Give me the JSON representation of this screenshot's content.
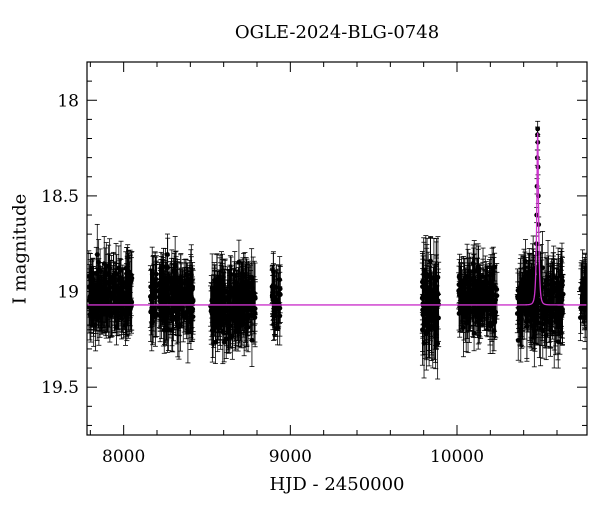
{
  "chart_data": {
    "type": "scatter",
    "title": "OGLE-2024-BLG-0748",
    "xlabel": "HJD - 2450000",
    "ylabel": "I magnitude",
    "xlim": [
      7780,
      10780
    ],
    "ylim": [
      19.75,
      17.8
    ],
    "y_inverted": true,
    "x_ticks": [
      8000,
      9000,
      10000
    ],
    "y_ticks": [
      18,
      18.5,
      19,
      19.5
    ],
    "grid": false,
    "legend": "none",
    "colors": {
      "points": "#000000",
      "model": "#cc33cc",
      "axes": "#000000"
    },
    "series": [
      {
        "kind": "points_with_errorbars",
        "seasons": [
          {
            "x_range": [
              7790,
              8050
            ],
            "mean_mag": 19.03,
            "scatter": 0.12,
            "err": 0.12
          },
          {
            "x_range": [
              8160,
              8420
            ],
            "mean_mag": 19.03,
            "scatter": 0.12,
            "err": 0.12
          },
          {
            "x_range": [
              8520,
              8790
            ],
            "mean_mag": 19.07,
            "scatter": 0.13,
            "err": 0.13
          },
          {
            "x_range": [
              8890,
              8940
            ],
            "mean_mag": 19.03,
            "scatter": 0.12,
            "err": 0.12
          },
          {
            "x_range": [
              9790,
              9890
            ],
            "mean_mag": 19.07,
            "scatter": 0.18,
            "err": 0.16
          },
          {
            "x_range": [
              10010,
              10240
            ],
            "mean_mag": 19.03,
            "scatter": 0.12,
            "err": 0.12
          },
          {
            "x_range": [
              10360,
              10640
            ],
            "mean_mag": 19.05,
            "scatter": 0.14,
            "err": 0.14
          },
          {
            "x_range": [
              10740,
              10780
            ],
            "mean_mag": 19.03,
            "scatter": 0.12,
            "err": 0.12
          }
        ],
        "event_points": [
          {
            "x": 10483,
            "y": 18.18
          },
          {
            "x": 10484,
            "y": 18.15
          },
          {
            "x": 10485,
            "y": 18.22
          },
          {
            "x": 10482,
            "y": 18.3
          },
          {
            "x": 10486,
            "y": 18.35
          },
          {
            "x": 10480,
            "y": 18.45
          },
          {
            "x": 10488,
            "y": 18.5
          },
          {
            "x": 10478,
            "y": 18.6
          },
          {
            "x": 10490,
            "y": 18.65
          },
          {
            "x": 10476,
            "y": 18.75
          },
          {
            "x": 10492,
            "y": 18.8
          },
          {
            "x": 10473,
            "y": 18.88
          },
          {
            "x": 10495,
            "y": 18.9
          }
        ]
      },
      {
        "kind": "model_curve",
        "baseline_mag": 19.07,
        "peak_x": 10484,
        "peak_mag": 18.17,
        "tE": 9
      }
    ]
  }
}
